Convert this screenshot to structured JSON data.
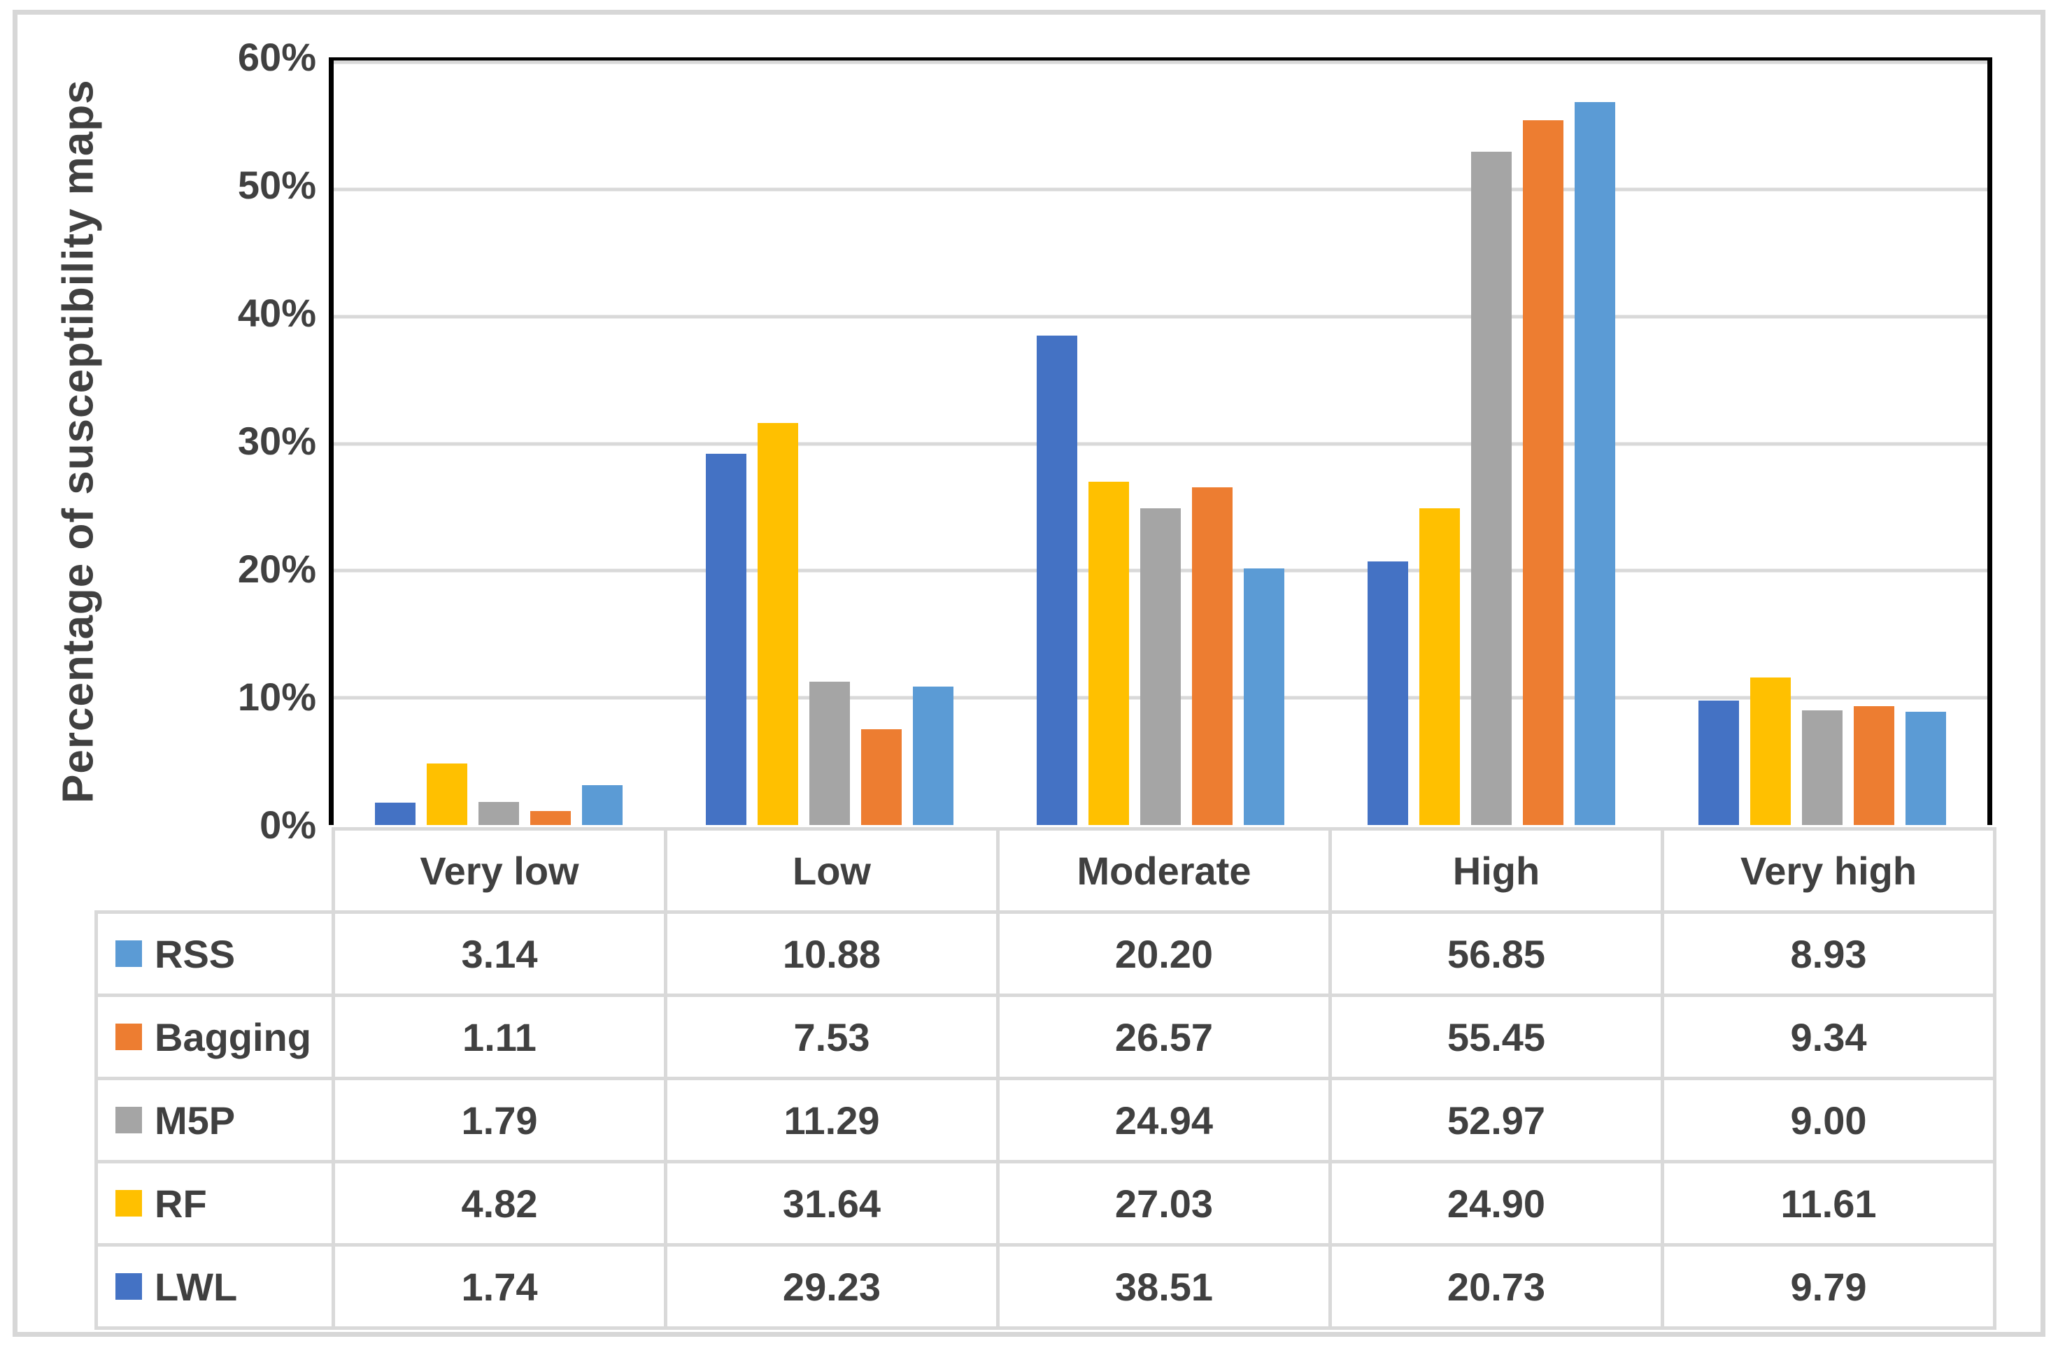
{
  "chart_data": {
    "type": "bar",
    "title": "",
    "xlabel": "",
    "ylabel": "Percentage of susceptibility maps",
    "ylim": [
      0,
      60
    ],
    "grid": true,
    "y_ticks": [
      "0%",
      "10%",
      "20%",
      "30%",
      "40%",
      "50%",
      "60%"
    ],
    "categories": [
      "Very low",
      "Low",
      "Moderate",
      "High",
      "Very high"
    ],
    "series": [
      {
        "name": "LWL",
        "color": "#4472C4",
        "values": [
          1.74,
          29.23,
          38.51,
          20.73,
          9.79
        ]
      },
      {
        "name": "RF",
        "color": "#FFC000",
        "values": [
          4.82,
          31.64,
          27.03,
          24.9,
          11.61
        ]
      },
      {
        "name": "M5P",
        "color": "#A5A5A5",
        "values": [
          1.79,
          11.29,
          24.94,
          52.97,
          9.0
        ]
      },
      {
        "name": "Bagging",
        "color": "#ED7D31",
        "values": [
          1.11,
          7.53,
          26.57,
          55.45,
          9.34
        ]
      },
      {
        "name": "RSS",
        "color": "#5B9BD5",
        "values": [
          3.14,
          10.88,
          20.2,
          56.85,
          8.93
        ]
      }
    ],
    "legend_position": "table-left"
  },
  "table": {
    "header": [
      "Very low",
      "Low",
      "Moderate",
      "High",
      "Very high"
    ],
    "rows": [
      {
        "label": "RSS",
        "color": "#5B9BD5",
        "values": [
          "3.14",
          "10.88",
          "20.20",
          "56.85",
          "8.93"
        ]
      },
      {
        "label": "Bagging",
        "color": "#ED7D31",
        "values": [
          "1.11",
          "7.53",
          "26.57",
          "55.45",
          "9.34"
        ]
      },
      {
        "label": "M5P",
        "color": "#A5A5A5",
        "values": [
          "1.79",
          "11.29",
          "24.94",
          "52.97",
          "9.00"
        ]
      },
      {
        "label": "RF",
        "color": "#FFC000",
        "values": [
          "4.82",
          "31.64",
          "27.03",
          "24.90",
          "11.61"
        ]
      },
      {
        "label": "LWL",
        "color": "#4472C4",
        "values": [
          "1.74",
          "29.23",
          "38.51",
          "20.73",
          "9.79"
        ]
      }
    ]
  },
  "colors": {
    "plot_border": "#000000",
    "gridline": "#d9d9d9",
    "table_border": "#d9d9d9",
    "text": "#404040",
    "figure_border": "#d7d7d7"
  }
}
